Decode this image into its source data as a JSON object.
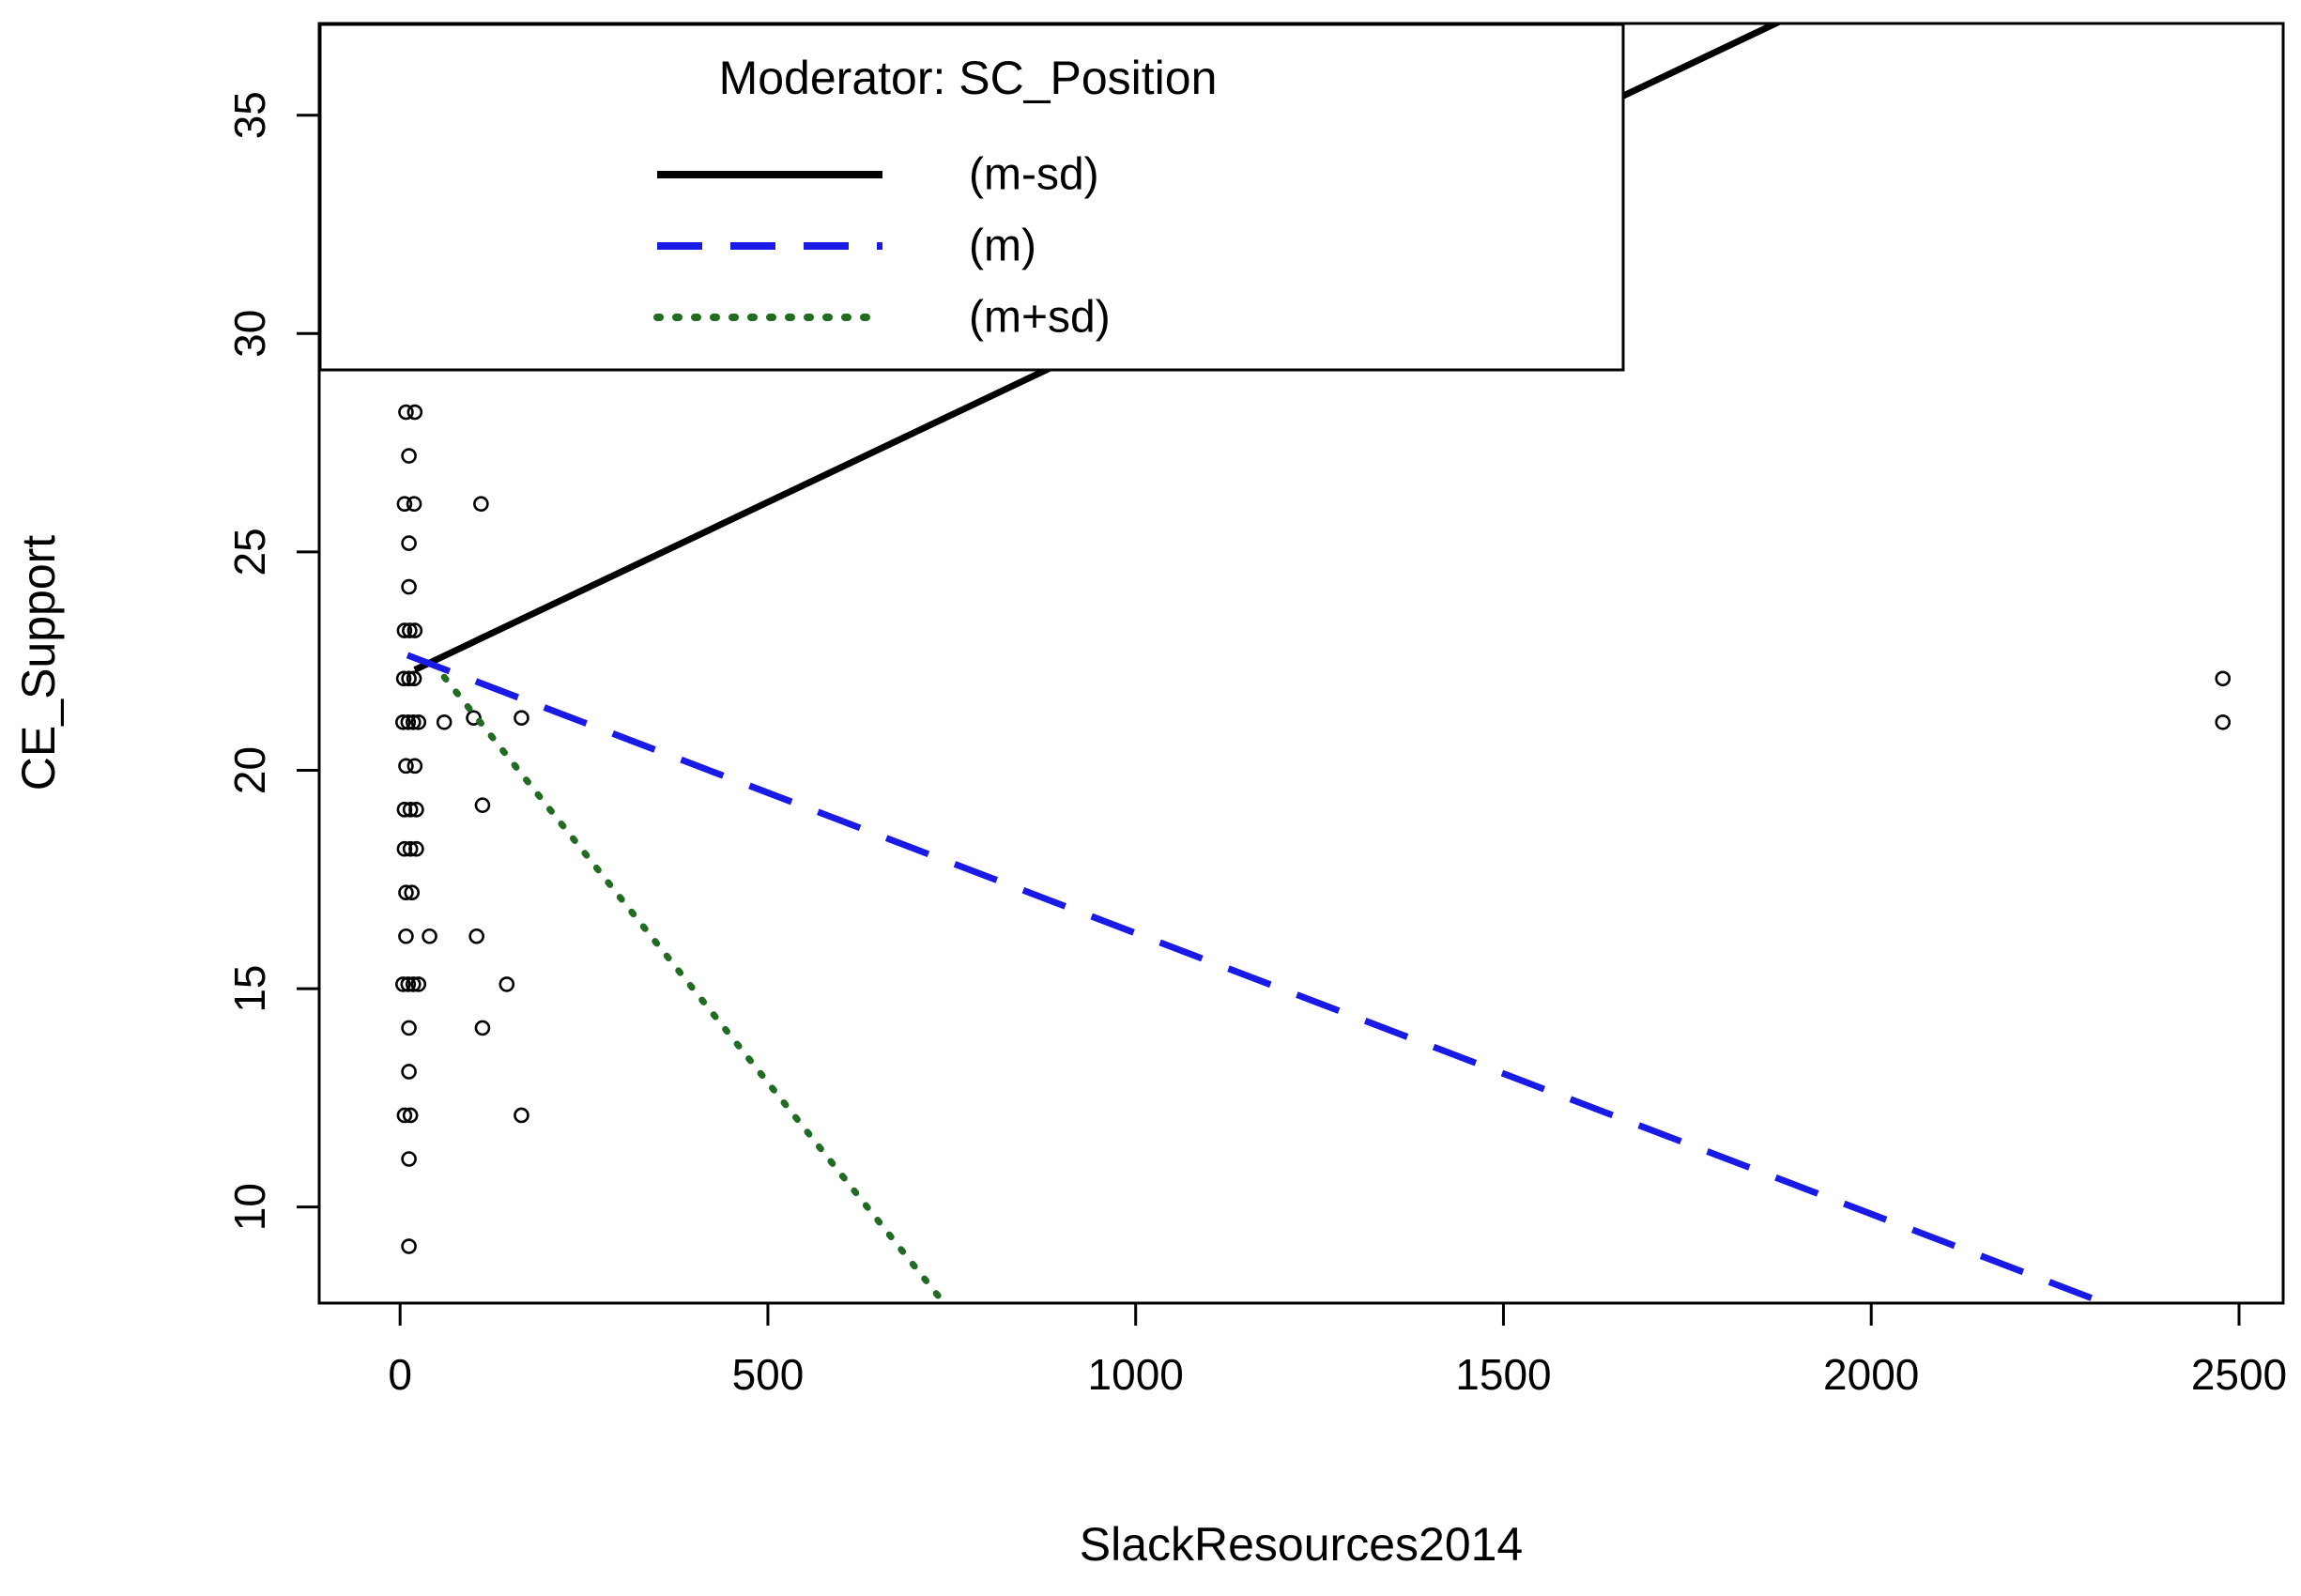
{
  "chart_data": {
    "type": "scatter",
    "title": "",
    "xlabel": "SlackResources2014",
    "ylabel": "CE_Support",
    "xlim": [
      -110,
      2560
    ],
    "ylim": [
      7.8,
      37.1
    ],
    "x_ticks": [
      0,
      500,
      1000,
      1500,
      2000,
      2500
    ],
    "y_ticks": [
      10,
      15,
      20,
      25,
      30,
      35
    ],
    "grid": false,
    "background": "#ffffff",
    "legend": {
      "title": "Moderator: SC_Position",
      "position": "top-left"
    },
    "lines": [
      {
        "label": "(m-sd)",
        "moderator_level": "m-sd",
        "color": "#000000",
        "style": "solid",
        "intercept": 22.14,
        "slope": 0.008,
        "x_range": [
          20,
          1880
        ]
      },
      {
        "label": "(m)",
        "moderator_level": "m",
        "color": "#1a1ae6",
        "style": "dashed",
        "intercept": 22.7,
        "slope": -0.00643,
        "x_range": [
          10,
          2320
        ]
      },
      {
        "label": "(m+sd)",
        "moderator_level": "m+sd",
        "color": "#226b22",
        "style": "dotted",
        "intercept": 23.4,
        "slope": -0.0211,
        "x_range": [
          60,
          740
        ]
      }
    ],
    "points": [
      [
        8,
        28.2
      ],
      [
        20,
        28.2
      ],
      [
        12,
        27.2
      ],
      [
        6,
        26.1
      ],
      [
        19,
        26.1
      ],
      [
        110,
        26.1
      ],
      [
        12,
        25.2
      ],
      [
        12,
        24.2
      ],
      [
        6,
        23.2
      ],
      [
        13,
        23.2
      ],
      [
        20,
        23.2
      ],
      [
        5,
        22.1
      ],
      [
        12,
        22.1
      ],
      [
        19,
        22.1
      ],
      [
        2478,
        22.1
      ],
      [
        4,
        21.1
      ],
      [
        11,
        21.1
      ],
      [
        18,
        21.1
      ],
      [
        25,
        21.1
      ],
      [
        60,
        21.1
      ],
      [
        100,
        21.2
      ],
      [
        165,
        21.2
      ],
      [
        2478,
        21.1
      ],
      [
        8,
        20.1
      ],
      [
        20,
        20.1
      ],
      [
        6,
        19.1
      ],
      [
        14,
        19.1
      ],
      [
        22,
        19.1
      ],
      [
        112,
        19.2
      ],
      [
        6,
        18.2
      ],
      [
        14,
        18.2
      ],
      [
        22,
        18.2
      ],
      [
        8,
        17.2
      ],
      [
        16,
        17.2
      ],
      [
        8,
        16.2
      ],
      [
        40,
        16.2
      ],
      [
        104,
        16.2
      ],
      [
        4,
        15.1
      ],
      [
        11,
        15.1
      ],
      [
        18,
        15.1
      ],
      [
        25,
        15.1
      ],
      [
        145,
        15.1
      ],
      [
        12,
        14.1
      ],
      [
        112,
        14.1
      ],
      [
        12,
        13.1
      ],
      [
        6,
        12.1
      ],
      [
        14,
        12.1
      ],
      [
        165,
        12.1
      ],
      [
        12,
        11.1
      ],
      [
        12,
        9.1
      ]
    ]
  }
}
